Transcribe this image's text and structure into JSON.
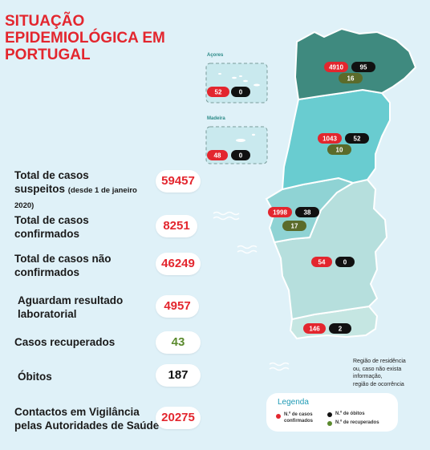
{
  "title_lines": [
    "SITUAÇÃO",
    "EPIDEMIOLÓGICA EM",
    "PORTUGAL"
  ],
  "stats": [
    {
      "label_line1": "Total de casos",
      "label_line2": "suspeitos",
      "note": "(desde 1 de janeiro",
      "note2": "2020)",
      "value": "59457"
    },
    {
      "label_line1": "Total de casos",
      "label_line2": "confirmados",
      "value": "8251"
    },
    {
      "label_line1": "Total de casos não",
      "label_line2": "confirmados",
      "value": "46249"
    },
    {
      "label_line1": "Aguardam resultado",
      "label_line2": "laboratorial",
      "value": "4957"
    },
    {
      "label_line1": "Casos recuperados",
      "value": "43"
    },
    {
      "label_line1": "Óbitos",
      "value": "187"
    },
    {
      "label_line1": "Contactos em Vigilância",
      "label_line2": "pelas Autoridades de Saúde",
      "value": "20275"
    }
  ],
  "islands": {
    "acores": {
      "name": "Açores",
      "confirmed": "52",
      "deaths": "0"
    },
    "madeira": {
      "name": "Madeira",
      "confirmed": "48",
      "deaths": "0"
    }
  },
  "regions": {
    "norte": {
      "confirmed": "4910",
      "deaths": "95",
      "recovered": "16"
    },
    "centro": {
      "confirmed": "1043",
      "deaths": "52",
      "recovered": "10"
    },
    "lisboa": {
      "confirmed": "1998",
      "deaths": "38",
      "recovered": "17"
    },
    "alentejo": {
      "confirmed": "54",
      "deaths": "0"
    },
    "algarve": {
      "confirmed": "146",
      "deaths": "2"
    }
  },
  "colors": {
    "norte": "#3f8a7f",
    "centro": "#69ccd0",
    "lisboa": "#8fd3d4",
    "alentejo": "#b6dfdd",
    "algarve": "#c5e6e2",
    "accent_red": "#e3262e",
    "recovered_green": "#5b6b2a"
  },
  "note_lines": [
    "Região de residência",
    "ou, caso não exista informação,",
    "região de ocorrência"
  ],
  "legend": {
    "title": "Legenda",
    "confirmed_line1": "N.º de casos",
    "confirmed_line2": "confirmados",
    "deaths": "N.º de óbitos",
    "recovered": "N.º de recuperados"
  }
}
